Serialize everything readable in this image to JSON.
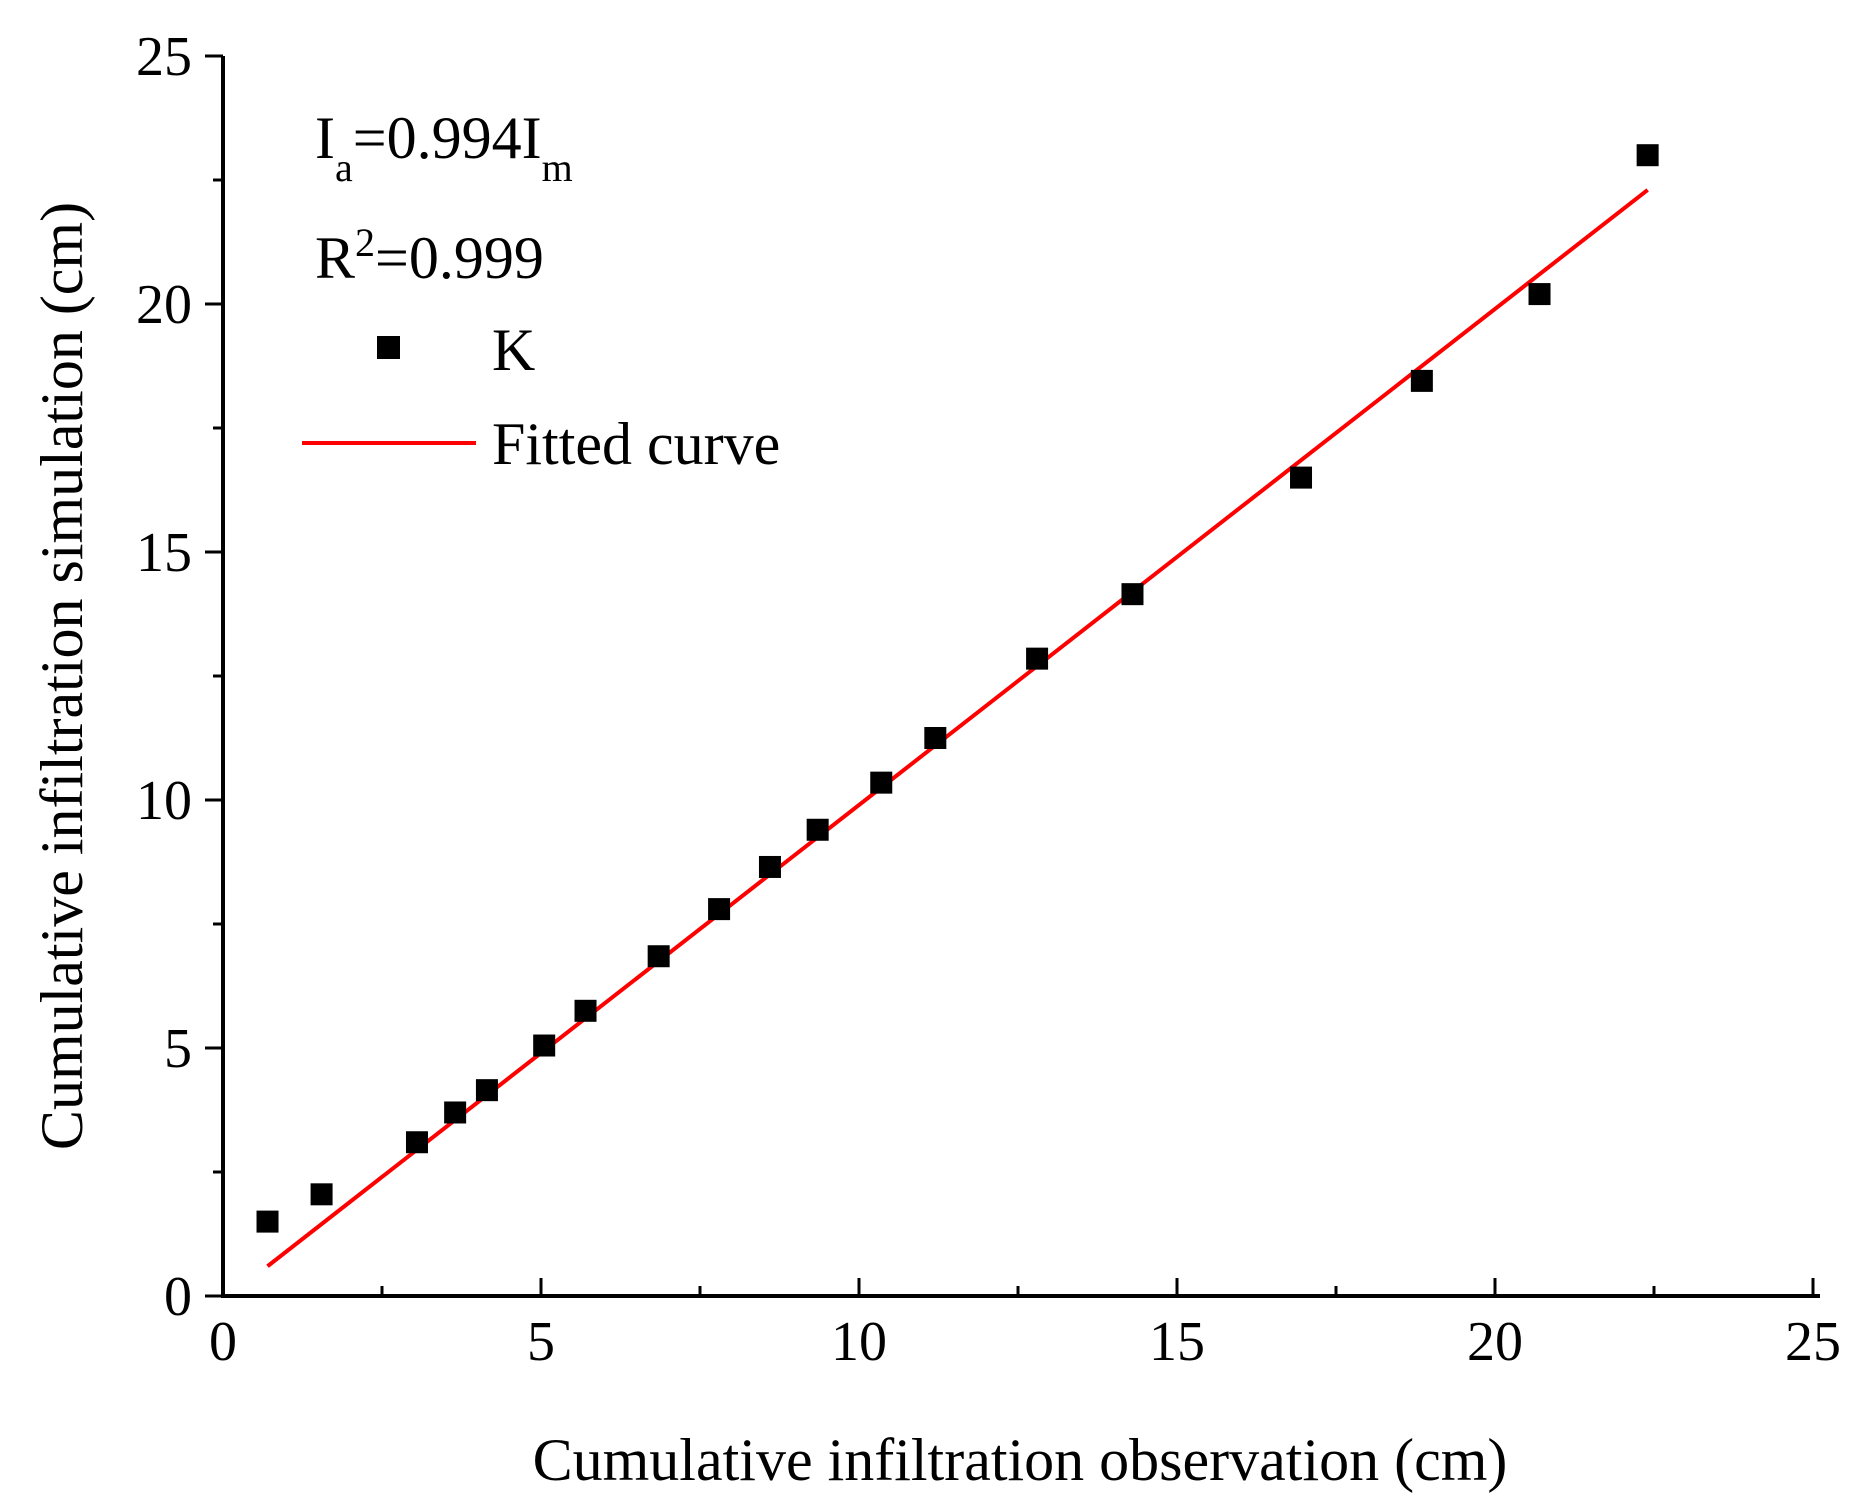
{
  "chart_data": {
    "type": "scatter",
    "title": "",
    "xlabel": "Cumulative infiltration observation (cm)",
    "ylabel": "Cumulative infiltration simulation (cm)",
    "xlim": [
      0,
      25
    ],
    "ylim": [
      0,
      25
    ],
    "xticks": [
      0,
      5,
      10,
      15,
      20,
      25
    ],
    "yticks": [
      0,
      5,
      10,
      15,
      20,
      25
    ],
    "xtick_labels": [
      "0",
      "5",
      "10",
      "15",
      "20",
      "25"
    ],
    "ytick_labels": [
      "0",
      "5",
      "10",
      "15",
      "20",
      "25"
    ],
    "grid": false,
    "legend_position": "top-left",
    "series": [
      {
        "name": "K",
        "kind": "scatter",
        "marker": "square",
        "color": "#000000",
        "x": [
          0.7,
          1.55,
          3.05,
          3.65,
          4.15,
          5.05,
          5.7,
          6.85,
          7.8,
          8.6,
          9.35,
          10.35,
          11.2,
          12.8,
          14.3,
          16.95,
          18.85,
          20.7,
          22.4
        ],
        "y": [
          1.5,
          2.05,
          3.1,
          3.7,
          4.15,
          5.05,
          5.75,
          6.85,
          7.8,
          8.65,
          9.4,
          10.35,
          11.25,
          12.85,
          14.15,
          16.5,
          18.45,
          20.2,
          23.0
        ]
      },
      {
        "name": "Fitted curve",
        "kind": "line",
        "color": "#ff0000",
        "x": [
          0.7,
          22.4
        ],
        "y": [
          0.6,
          22.3
        ]
      }
    ],
    "annotations": {
      "equation": {
        "base1": "I",
        "sub1": "a",
        "mid": "=0.994I",
        "sub2": "m"
      },
      "r2": {
        "base": "R",
        "sup": "2",
        "rest": "=0.999"
      }
    }
  }
}
